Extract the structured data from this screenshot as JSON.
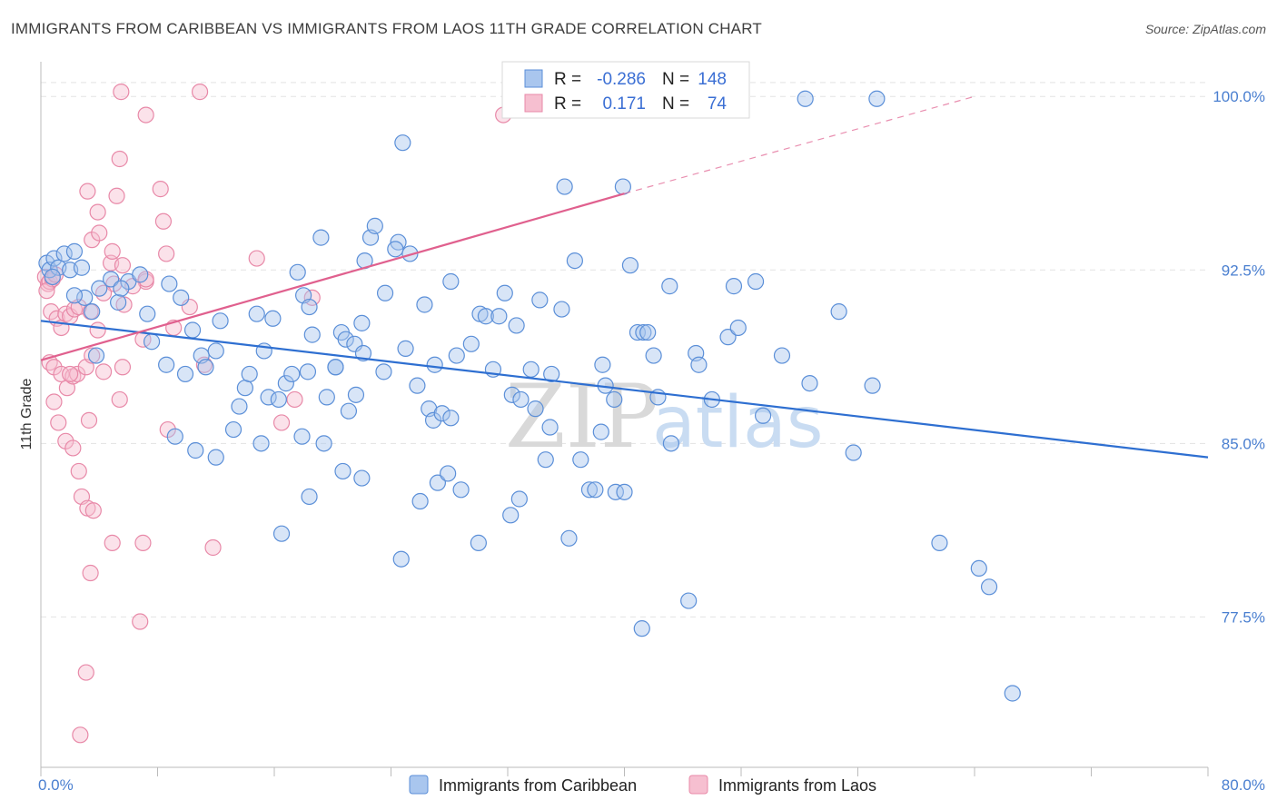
{
  "header": {
    "title": "IMMIGRANTS FROM CARIBBEAN VS IMMIGRANTS FROM LAOS 11TH GRADE CORRELATION CHART",
    "source": "Source: ZipAtlas.com"
  },
  "watermark": {
    "zip": "ZIP",
    "atlas": "atlas"
  },
  "colors": {
    "blue": "#5b8fd8",
    "blue_fill": "#a9c6ee",
    "blue_line": "#2e6fd1",
    "pink": "#e889a8",
    "pink_fill": "#f6bfd0",
    "pink_line": "#e0608e",
    "grid": "#e3e3e3"
  },
  "stats": {
    "r_label": "R =",
    "n_label": "N =",
    "rows": [
      {
        "series": "Immigrants from Caribbean",
        "r": "-0.286",
        "n": "148"
      },
      {
        "series": "Immigrants from Laos",
        "r": "0.171",
        "n": "74"
      }
    ]
  },
  "chart_data": {
    "type": "scatter",
    "title": "IMMIGRANTS FROM CARIBBEAN VS IMMIGRANTS FROM LAOS 11TH GRADE CORRELATION CHART",
    "xlabel": "",
    "ylabel": "11th Grade",
    "xlim": [
      0,
      80
    ],
    "ylim": [
      71.0,
      101.5
    ],
    "x_tick_labels": [
      "0.0%",
      "80.0%"
    ],
    "y_ticks": [
      77.5,
      85.0,
      92.5,
      100.0
    ],
    "y_tick_labels": [
      "77.5%",
      "85.0%",
      "92.5%",
      "100.0%"
    ],
    "grid": true,
    "legend_position": "bottom-center",
    "series": [
      {
        "name": "Immigrants from Caribbean",
        "color": "#5b8fd8",
        "trend": {
          "x": [
            0,
            80
          ],
          "y": [
            90.3,
            84.4
          ]
        },
        "points": [
          [
            0.4,
            92.8
          ],
          [
            0.6,
            92.5
          ],
          [
            0.9,
            93.0
          ],
          [
            1.2,
            92.6
          ],
          [
            1.6,
            93.2
          ],
          [
            2.0,
            92.5
          ],
          [
            2.3,
            93.3
          ],
          [
            2.8,
            92.6
          ],
          [
            0.8,
            92.2
          ],
          [
            3.0,
            91.3
          ],
          [
            3.5,
            90.7
          ],
          [
            4.0,
            91.7
          ],
          [
            4.8,
            92.1
          ],
          [
            5.3,
            91.1
          ],
          [
            6.0,
            92.0
          ],
          [
            6.8,
            92.3
          ],
          [
            2.3,
            91.4
          ],
          [
            3.8,
            88.8
          ],
          [
            5.5,
            91.7
          ],
          [
            7.3,
            90.6
          ],
          [
            7.6,
            89.4
          ],
          [
            8.8,
            91.9
          ],
          [
            9.6,
            91.3
          ],
          [
            8.6,
            88.4
          ],
          [
            9.9,
            88.0
          ],
          [
            10.4,
            89.9
          ],
          [
            11.0,
            88.8
          ],
          [
            11.3,
            88.3
          ],
          [
            12.0,
            89.0
          ],
          [
            12.3,
            90.3
          ],
          [
            13.6,
            86.6
          ],
          [
            14.0,
            87.4
          ],
          [
            14.3,
            88.0
          ],
          [
            14.8,
            90.6
          ],
          [
            15.3,
            89.0
          ],
          [
            15.6,
            87.0
          ],
          [
            15.9,
            90.4
          ],
          [
            16.3,
            86.9
          ],
          [
            16.8,
            87.6
          ],
          [
            17.2,
            88.0
          ],
          [
            17.6,
            92.4
          ],
          [
            18.0,
            91.4
          ],
          [
            18.3,
            88.1
          ],
          [
            18.4,
            90.9
          ],
          [
            18.6,
            89.7
          ],
          [
            19.2,
            93.9
          ],
          [
            19.6,
            87.0
          ],
          [
            20.2,
            88.3
          ],
          [
            20.6,
            89.8
          ],
          [
            20.9,
            89.5
          ],
          [
            21.5,
            89.3
          ],
          [
            21.6,
            87.1
          ],
          [
            22.0,
            90.2
          ],
          [
            22.6,
            93.9
          ],
          [
            22.9,
            94.4
          ],
          [
            23.6,
            91.5
          ],
          [
            24.5,
            93.7
          ],
          [
            25.0,
            89.1
          ],
          [
            25.3,
            93.2
          ],
          [
            25.8,
            87.5
          ],
          [
            26.3,
            91.0
          ],
          [
            26.6,
            86.5
          ],
          [
            26.9,
            86.0
          ],
          [
            27.0,
            88.4
          ],
          [
            27.5,
            86.3
          ],
          [
            28.1,
            92.0
          ],
          [
            28.5,
            88.8
          ],
          [
            29.5,
            89.3
          ],
          [
            30.1,
            90.6
          ],
          [
            30.5,
            90.5
          ],
          [
            31.0,
            88.2
          ],
          [
            31.4,
            90.5
          ],
          [
            31.8,
            91.5
          ],
          [
            32.3,
            87.1
          ],
          [
            32.6,
            90.1
          ],
          [
            32.9,
            86.9
          ],
          [
            33.6,
            88.2
          ],
          [
            34.2,
            91.2
          ],
          [
            34.9,
            85.7
          ],
          [
            35.0,
            88.0
          ],
          [
            35.7,
            90.8
          ],
          [
            36.6,
            92.9
          ],
          [
            37.0,
            84.3
          ],
          [
            37.6,
            83.0
          ],
          [
            38.0,
            83.0
          ],
          [
            38.5,
            88.4
          ],
          [
            38.7,
            87.5
          ],
          [
            39.3,
            86.9
          ],
          [
            39.9,
            96.1
          ],
          [
            40.4,
            92.7
          ],
          [
            40.9,
            89.8
          ],
          [
            41.3,
            89.8
          ],
          [
            42.3,
            87.0
          ],
          [
            43.1,
            91.8
          ],
          [
            44.4,
            78.2
          ],
          [
            44.9,
            88.9
          ],
          [
            45.1,
            88.4
          ],
          [
            46.0,
            86.9
          ],
          [
            47.1,
            89.6
          ],
          [
            47.5,
            91.8
          ],
          [
            47.8,
            90.0
          ],
          [
            49.0,
            92.0
          ],
          [
            49.5,
            86.2
          ],
          [
            50.8,
            88.8
          ],
          [
            52.7,
            87.6
          ],
          [
            54.7,
            90.7
          ],
          [
            55.7,
            84.6
          ],
          [
            57.0,
            87.5
          ],
          [
            61.6,
            80.7
          ],
          [
            64.3,
            79.6
          ],
          [
            65.0,
            78.8
          ],
          [
            66.6,
            74.2
          ],
          [
            52.4,
            99.9
          ],
          [
            57.3,
            99.9
          ],
          [
            24.8,
            98.0
          ],
          [
            35.9,
            96.1
          ],
          [
            41.2,
            77.0
          ],
          [
            24.7,
            80.0
          ],
          [
            24.3,
            93.4
          ],
          [
            22.2,
            92.9
          ],
          [
            18.4,
            82.7
          ],
          [
            16.5,
            81.1
          ],
          [
            22.0,
            83.5
          ],
          [
            20.7,
            83.8
          ],
          [
            21.1,
            86.4
          ],
          [
            22.1,
            88.9
          ],
          [
            23.5,
            88.1
          ],
          [
            26.0,
            82.5
          ],
          [
            27.2,
            83.3
          ],
          [
            27.9,
            83.7
          ],
          [
            28.1,
            86.1
          ],
          [
            28.8,
            83.0
          ],
          [
            30.0,
            80.7
          ],
          [
            32.2,
            81.9
          ],
          [
            32.8,
            82.6
          ],
          [
            33.9,
            86.5
          ],
          [
            34.6,
            84.3
          ],
          [
            36.2,
            80.9
          ],
          [
            38.4,
            85.5
          ],
          [
            39.4,
            82.9
          ],
          [
            40.0,
            82.9
          ],
          [
            41.6,
            89.8
          ],
          [
            42.0,
            88.8
          ],
          [
            43.2,
            85.0
          ],
          [
            20.2,
            88.3
          ],
          [
            19.4,
            85.0
          ],
          [
            17.9,
            85.3
          ],
          [
            15.1,
            85.0
          ],
          [
            13.2,
            85.6
          ],
          [
            12.0,
            84.4
          ],
          [
            10.6,
            84.7
          ],
          [
            9.2,
            85.3
          ]
        ]
      },
      {
        "name": "Immigrants from Laos",
        "color": "#e889a8",
        "trend": {
          "x": [
            0,
            40
          ],
          "y": [
            88.6,
            95.8
          ]
        },
        "trend_extension": {
          "x": [
            40,
            64
          ],
          "y": [
            95.8,
            100.0
          ]
        },
        "points": [
          [
            0.3,
            92.2
          ],
          [
            0.5,
            91.9
          ],
          [
            0.6,
            92.0
          ],
          [
            0.8,
            92.1
          ],
          [
            1.0,
            92.3
          ],
          [
            0.4,
            91.6
          ],
          [
            0.7,
            90.7
          ],
          [
            1.1,
            90.4
          ],
          [
            1.4,
            90.0
          ],
          [
            1.7,
            90.6
          ],
          [
            2.0,
            90.5
          ],
          [
            2.3,
            90.8
          ],
          [
            2.6,
            90.9
          ],
          [
            0.6,
            88.5
          ],
          [
            0.9,
            88.3
          ],
          [
            1.4,
            88.0
          ],
          [
            1.8,
            87.4
          ],
          [
            2.2,
            87.9
          ],
          [
            2.5,
            88.0
          ],
          [
            3.1,
            88.3
          ],
          [
            3.5,
            88.8
          ],
          [
            1.2,
            85.9
          ],
          [
            1.7,
            85.1
          ],
          [
            3.3,
            86.0
          ],
          [
            2.6,
            83.8
          ],
          [
            2.8,
            82.7
          ],
          [
            3.2,
            82.2
          ],
          [
            3.6,
            82.1
          ],
          [
            4.9,
            80.7
          ],
          [
            3.4,
            79.4
          ],
          [
            7.0,
            80.7
          ],
          [
            11.8,
            80.5
          ],
          [
            6.8,
            77.3
          ],
          [
            3.1,
            75.1
          ],
          [
            2.7,
            72.4
          ],
          [
            5.4,
            86.9
          ],
          [
            8.7,
            85.6
          ],
          [
            9.1,
            90.0
          ],
          [
            10.2,
            90.9
          ],
          [
            11.2,
            88.4
          ],
          [
            5.6,
            88.3
          ],
          [
            7.0,
            89.5
          ],
          [
            7.2,
            92.0
          ],
          [
            5.0,
            91.9
          ],
          [
            4.8,
            92.8
          ],
          [
            4.9,
            93.3
          ],
          [
            5.6,
            92.7
          ],
          [
            4.3,
            91.5
          ],
          [
            3.5,
            93.8
          ],
          [
            4.0,
            94.1
          ],
          [
            3.9,
            95.0
          ],
          [
            5.2,
            95.7
          ],
          [
            3.2,
            95.9
          ],
          [
            5.4,
            97.3
          ],
          [
            5.5,
            100.2
          ],
          [
            7.2,
            99.2
          ],
          [
            10.9,
            100.2
          ],
          [
            8.2,
            96.0
          ],
          [
            8.4,
            94.6
          ],
          [
            8.6,
            93.2
          ],
          [
            7.2,
            92.1
          ],
          [
            5.7,
            91.0
          ],
          [
            3.4,
            90.7
          ],
          [
            14.8,
            93.0
          ],
          [
            17.4,
            86.9
          ],
          [
            18.6,
            91.3
          ],
          [
            16.5,
            85.9
          ],
          [
            4.3,
            88.1
          ],
          [
            0.9,
            86.8
          ],
          [
            2.0,
            88.0
          ],
          [
            31.7,
            99.2
          ],
          [
            3.9,
            89.9
          ],
          [
            2.2,
            84.8
          ],
          [
            6.3,
            91.8
          ]
        ]
      }
    ]
  },
  "legend": {
    "items": [
      {
        "label": "Immigrants from Caribbean"
      },
      {
        "label": "Immigrants from Laos"
      }
    ]
  }
}
